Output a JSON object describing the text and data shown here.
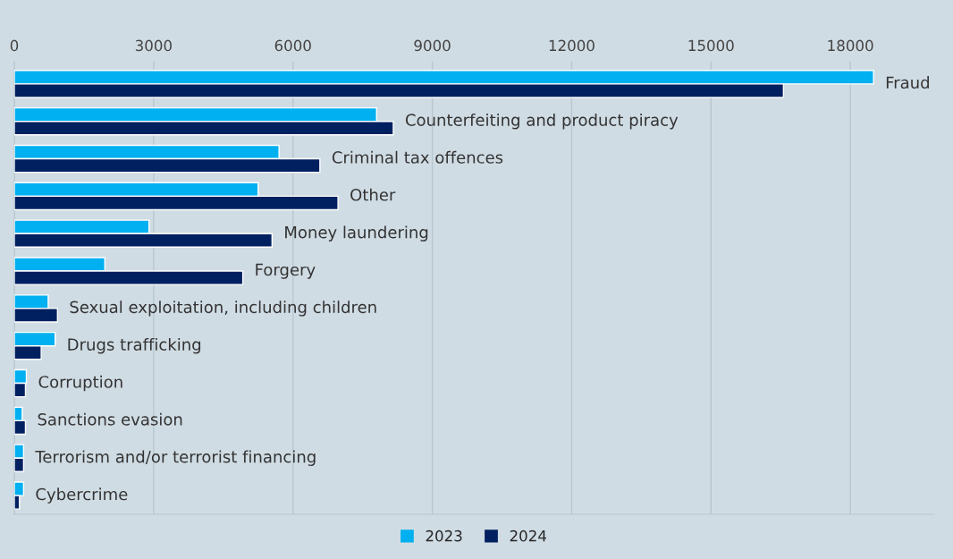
{
  "chart_data": {
    "type": "bar",
    "orientation": "horizontal",
    "categories": [
      "Fraud",
      "Counterfeiting and product piracy",
      "Criminal tax offences",
      "Other",
      "Money laundering",
      "Forgery",
      "Sexual exploitation, including children",
      "Drugs trafficking",
      "Corruption",
      "Sanctions evasion",
      "Terrorism and/or terrorist financing",
      "Cybercrime"
    ],
    "series": [
      {
        "name": "2023",
        "color": "#00b0f0",
        "values": [
          18500,
          7800,
          5700,
          5250,
          2900,
          1950,
          730,
          880,
          260,
          170,
          200,
          200
        ]
      },
      {
        "name": "2024",
        "color": "#002060",
        "values": [
          16560,
          8160,
          6580,
          6970,
          5550,
          4920,
          930,
          580,
          240,
          240,
          200,
          110
        ]
      }
    ],
    "xlim": [
      0,
      19800
    ],
    "xticks": [
      0,
      3000,
      6000,
      9000,
      12000,
      15000,
      18000
    ],
    "grid": "x",
    "legend": "bottom"
  }
}
